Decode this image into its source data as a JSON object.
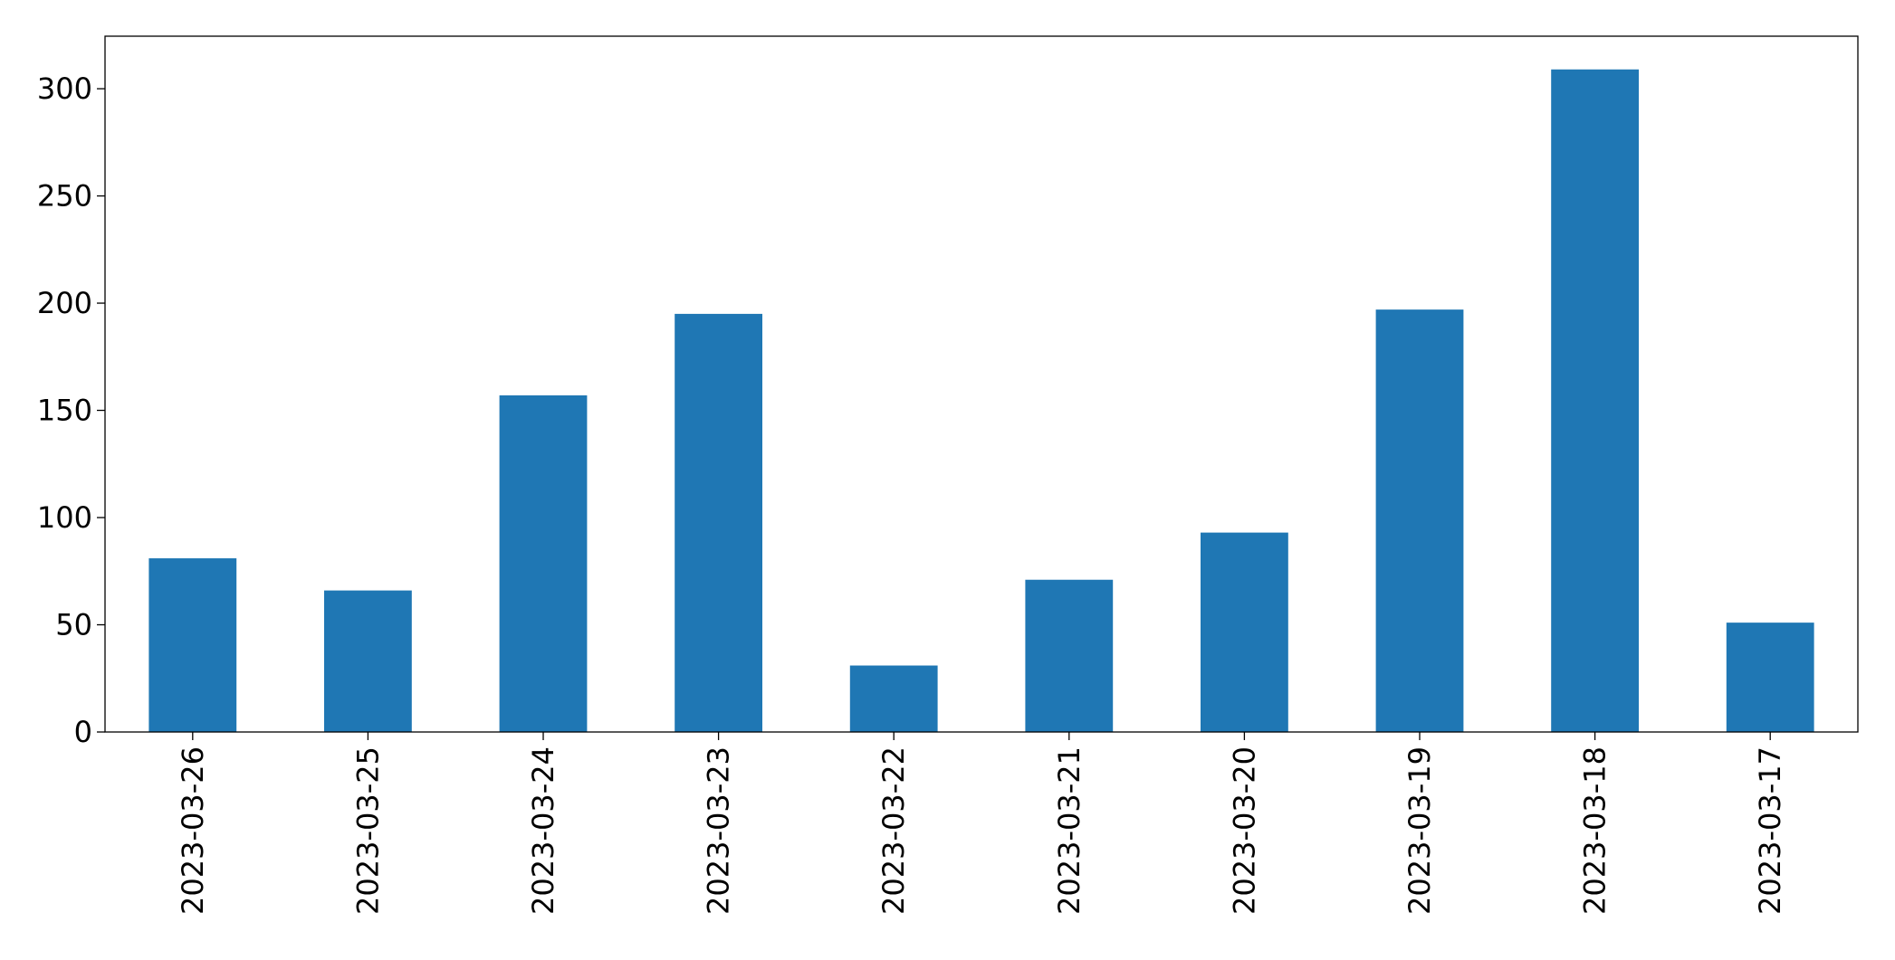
{
  "chart_data": {
    "type": "bar",
    "categories": [
      "2023-03-26",
      "2023-03-25",
      "2023-03-24",
      "2023-03-23",
      "2023-03-22",
      "2023-03-21",
      "2023-03-20",
      "2023-03-19",
      "2023-03-18",
      "2023-03-17"
    ],
    "values": [
      81,
      66,
      157,
      195,
      31,
      71,
      93,
      197,
      309,
      51
    ],
    "color": "#1f77b4",
    "ylim": [
      0,
      324.5
    ],
    "yticks": [
      0,
      50,
      100,
      150,
      200,
      250,
      300
    ],
    "grid": false
  }
}
